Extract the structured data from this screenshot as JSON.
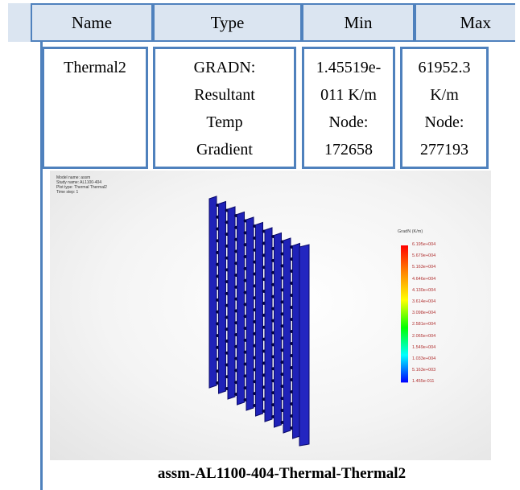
{
  "table": {
    "header": [
      "Name",
      "Type",
      "Min",
      "Max"
    ],
    "rows": [
      [
        [
          "Thermal2"
        ],
        [
          "GRADN:",
          "Resultant",
          "Temp",
          "Gradient"
        ],
        [
          "1.45519e-",
          "011 K/m",
          "Node:",
          "172658"
        ],
        [
          "61952.3",
          "K/m",
          "Node:",
          "277193"
        ]
      ]
    ]
  },
  "figure": {
    "info": [
      "Model name: assm",
      "Study name: AL1100-404",
      "Plot type: Thermal Thermal2",
      "Time step: 1"
    ],
    "legend_title": "GradN (K/m)",
    "legend_labels": [
      "6.195e+004",
      "5.679e+004",
      "5.163e+004",
      "4.646e+004",
      "4.130e+004",
      "3.614e+004",
      "3.098e+004",
      "2.581e+004",
      "2.065e+004",
      "1.549e+004",
      "1.033e+004",
      "5.163e+003",
      "1.455e-011"
    ],
    "caption": "assm-AL1100-404-Thermal-Thermal2"
  }
}
